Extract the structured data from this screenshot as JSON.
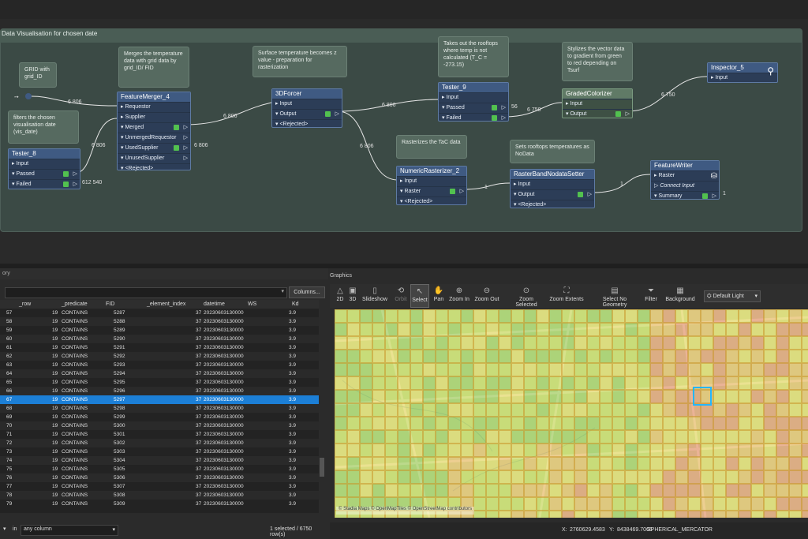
{
  "workspace": {
    "bookmark_title": "Data Visualisation for chosen date",
    "annotations": {
      "grid": "GRID with grid_ID",
      "merge": "Merges the temperature data with grid data by grid_ID/ FID",
      "surface": "Surface temperature becomes z value - preparation for rasterization",
      "tester9": "Takes out the rooftops where temp is not calculated (T_C = -273.15)",
      "stylize": "Stylizes the vector data to gradient from green to red depending on Tsurf",
      "filter": "filters the chosen visualisation date (vis_date)",
      "rasterize": "Rasterizes the TaC data",
      "nodata": "Sets rooftops temperatures as NoData"
    },
    "transformers": {
      "tester8": {
        "title": "Tester_8",
        "ports": [
          "Input",
          "Passed",
          "Failed"
        ]
      },
      "merger": {
        "title": "FeatureMerger_4",
        "ports": [
          "Requestor",
          "Supplier",
          "Merged",
          "UnmergedRequestor",
          "UsedSupplier",
          "UnusedSupplier",
          "<Rejected>"
        ]
      },
      "forcer": {
        "title": "3DForcer",
        "ports": [
          "Input",
          "Output",
          "<Rejected>"
        ]
      },
      "tester9": {
        "title": "Tester_9",
        "ports": [
          "Input",
          "Passed",
          "Failed"
        ]
      },
      "colorizer": {
        "title": "GradedColorizer",
        "ports": [
          "Input",
          "Output"
        ]
      },
      "inspector": {
        "title": "Inspector_5",
        "ports": [
          "Input"
        ]
      },
      "rasterizer": {
        "title": "NumericRasterizer_2",
        "ports": [
          "Input",
          "Raster",
          "<Rejected>"
        ]
      },
      "nodata": {
        "title": "RasterBandNodataSetter",
        "ports": [
          "Input",
          "Output",
          "<Rejected>"
        ]
      },
      "writer": {
        "title": "FeatureWriter",
        "ports": [
          "Raster",
          "Connect Input",
          "Summary"
        ]
      }
    },
    "counts": {
      "c1": "6 806",
      "c2": "6 806",
      "c3": "6 806",
      "c4": "6 806",
      "c5": "6 806",
      "c6": "6 806",
      "c7": "56",
      "c8": "6 750",
      "c9": "6 750",
      "c10": "612 540",
      "c11": "1",
      "c12": "1",
      "c13": "1"
    }
  },
  "table": {
    "panel_label": "ory",
    "columns_button": "Columns...",
    "headers": [
      "_row",
      "_predicate",
      "FID",
      "_element_index",
      "datetime",
      "WS",
      "Kd"
    ],
    "rows": [
      [
        "57",
        "19",
        "CONTAINS",
        "5287",
        "37",
        "20230603130000",
        "3.9"
      ],
      [
        "58",
        "19",
        "CONTAINS",
        "5288",
        "37",
        "20230603130000",
        "3.9"
      ],
      [
        "59",
        "19",
        "CONTAINS",
        "5289",
        "37",
        "20230603130000",
        "3.9"
      ],
      [
        "60",
        "19",
        "CONTAINS",
        "5290",
        "37",
        "20230603130000",
        "3.9"
      ],
      [
        "61",
        "19",
        "CONTAINS",
        "5291",
        "37",
        "20230603130000",
        "3.9"
      ],
      [
        "62",
        "19",
        "CONTAINS",
        "5292",
        "37",
        "20230603130000",
        "3.9"
      ],
      [
        "63",
        "19",
        "CONTAINS",
        "5293",
        "37",
        "20230603130000",
        "3.9"
      ],
      [
        "64",
        "19",
        "CONTAINS",
        "5294",
        "37",
        "20230603130000",
        "3.9"
      ],
      [
        "65",
        "19",
        "CONTAINS",
        "5295",
        "37",
        "20230603130000",
        "3.9"
      ],
      [
        "66",
        "19",
        "CONTAINS",
        "5296",
        "37",
        "20230603130000",
        "3.9"
      ],
      [
        "67",
        "19",
        "CONTAINS",
        "5297",
        "37",
        "20230603130000",
        "3.9"
      ],
      [
        "68",
        "19",
        "CONTAINS",
        "5298",
        "37",
        "20230603130000",
        "3.9"
      ],
      [
        "69",
        "19",
        "CONTAINS",
        "5299",
        "37",
        "20230603130000",
        "3.9"
      ],
      [
        "70",
        "19",
        "CONTAINS",
        "5300",
        "37",
        "20230603130000",
        "3.9"
      ],
      [
        "71",
        "19",
        "CONTAINS",
        "5301",
        "37",
        "20230603130000",
        "3.9"
      ],
      [
        "72",
        "19",
        "CONTAINS",
        "5302",
        "37",
        "20230603130000",
        "3.9"
      ],
      [
        "73",
        "19",
        "CONTAINS",
        "5303",
        "37",
        "20230603130000",
        "3.9"
      ],
      [
        "74",
        "19",
        "CONTAINS",
        "5304",
        "37",
        "20230603130000",
        "3.9"
      ],
      [
        "75",
        "19",
        "CONTAINS",
        "5305",
        "37",
        "20230603130000",
        "3.9"
      ],
      [
        "76",
        "19",
        "CONTAINS",
        "5306",
        "37",
        "20230603130000",
        "3.9"
      ],
      [
        "77",
        "19",
        "CONTAINS",
        "5307",
        "37",
        "20230603130000",
        "3.9"
      ],
      [
        "78",
        "19",
        "CONTAINS",
        "5308",
        "37",
        "20230603130000",
        "3.9"
      ],
      [
        "79",
        "19",
        "CONTAINS",
        "5309",
        "37",
        "20230603130000",
        "3.9"
      ]
    ],
    "selected_row": "67",
    "in_label": "in",
    "any_column": "any column",
    "status": "1 selected / 6750 row(s)"
  },
  "graphics": {
    "title": "Graphics",
    "tools": [
      "2D",
      "3D",
      "Slideshow",
      "Orbit",
      "Select",
      "Pan",
      "Zoom In",
      "Zoom Out",
      "Zoom Selected",
      "Zoom Extents",
      "Select No Geometry",
      "Filter",
      "Background",
      "Default Light"
    ],
    "active_tool": "Select",
    "attribution": "© Stadia Maps © OpenMapTiles © OpenStreetMap contributors",
    "coord_x_label": "X:",
    "coord_x": "2760629.4583",
    "coord_y_label": "Y:",
    "coord_y": "8438469.7066",
    "crs": "SPHERICAL_MERCATOR"
  }
}
